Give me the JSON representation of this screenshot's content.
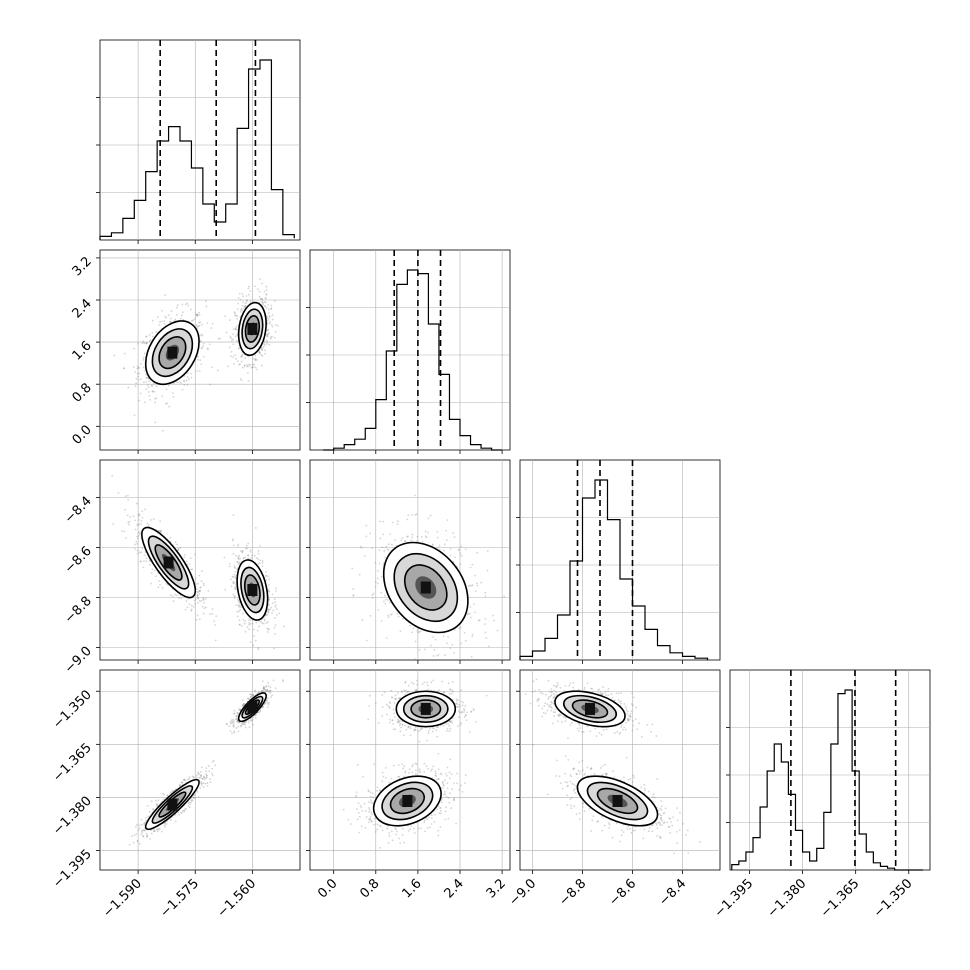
{
  "chart_data": {
    "type": "corner",
    "title": "",
    "parameters": [
      {
        "label": "",
        "range": [
          -1.6,
          -1.5475
        ],
        "ticks": [
          -1.59,
          -1.575,
          -1.56
        ],
        "tick_labels": [
          "−1.590",
          "−1.575",
          "−1.560"
        ]
      },
      {
        "label": "",
        "range": [
          -0.45,
          3.35
        ],
        "ticks": [
          0.0,
          0.8,
          1.6,
          2.4,
          3.2
        ],
        "tick_labels": [
          "0.0",
          "0.8",
          "1.6",
          "2.4",
          "3.2"
        ]
      },
      {
        "label": "",
        "range": [
          -9.05,
          -8.25
        ],
        "ticks": [
          -9.0,
          -8.8,
          -8.6,
          -8.4
        ],
        "tick_labels": [
          "−9.0",
          "−8.8",
          "−8.6",
          "−8.4"
        ]
      },
      {
        "label": "",
        "range": [
          -1.4005,
          -1.344
        ],
        "ticks": [
          -1.395,
          -1.38,
          -1.365,
          -1.35
        ],
        "tick_labels": [
          "−1.395",
          "−1.380",
          "−1.365",
          "−1.350"
        ]
      }
    ],
    "histograms": [
      {
        "parameter": 0,
        "bins": [
          -1.6,
          -1.597,
          -1.594,
          -1.591,
          -1.588,
          -1.585,
          -1.582,
          -1.579,
          -1.576,
          -1.573,
          -1.57,
          -1.567,
          -1.564,
          -1.561,
          -1.558,
          -1.555,
          -1.552,
          -1.549
        ],
        "counts": [
          0.02,
          0.04,
          0.12,
          0.22,
          0.38,
          0.55,
          0.63,
          0.55,
          0.4,
          0.2,
          0.1,
          0.2,
          0.62,
          0.95,
          1.0,
          0.28,
          0.03,
          0.01
        ],
        "quantiles": [
          -1.5842,
          -1.5695,
          -1.5592
        ]
      },
      {
        "parameter": 1,
        "bins": [
          -0.2,
          0.0,
          0.2,
          0.4,
          0.6,
          0.8,
          1.0,
          1.2,
          1.4,
          1.6,
          1.8,
          2.0,
          2.2,
          2.4,
          2.6,
          2.8,
          3.0,
          3.2
        ],
        "counts": [
          0.0,
          0.01,
          0.03,
          0.06,
          0.12,
          0.28,
          0.55,
          0.92,
          1.0,
          0.98,
          0.7,
          0.42,
          0.17,
          0.08,
          0.03,
          0.01,
          0.0
        ],
        "quantiles": [
          1.15,
          1.6,
          2.03
        ]
      },
      {
        "parameter": 2,
        "bins": [
          -9.05,
          -9.0,
          -8.95,
          -8.9,
          -8.85,
          -8.8,
          -8.75,
          -8.7,
          -8.65,
          -8.6,
          -8.55,
          -8.5,
          -8.45,
          -8.4,
          -8.35,
          -8.3
        ],
        "counts": [
          0.02,
          0.05,
          0.12,
          0.25,
          0.55,
          0.9,
          1.0,
          0.78,
          0.45,
          0.3,
          0.17,
          0.08,
          0.04,
          0.02,
          0.01
        ],
        "quantiles": [
          -8.82,
          -8.73,
          -8.6
        ]
      },
      {
        "parameter": 3,
        "bins": [
          -1.4,
          -1.398,
          -1.396,
          -1.394,
          -1.392,
          -1.39,
          -1.388,
          -1.386,
          -1.384,
          -1.382,
          -1.38,
          -1.378,
          -1.376,
          -1.374,
          -1.372,
          -1.37,
          -1.368,
          -1.366,
          -1.364,
          -1.362,
          -1.36,
          -1.358,
          -1.356,
          -1.354,
          -1.352,
          -1.35,
          -1.348,
          -1.346
        ],
        "counts": [
          0.03,
          0.05,
          0.1,
          0.18,
          0.35,
          0.55,
          0.7,
          0.6,
          0.42,
          0.22,
          0.1,
          0.05,
          0.12,
          0.32,
          0.7,
          0.98,
          1.0,
          0.55,
          0.2,
          0.1,
          0.04,
          0.02,
          0.01,
          0.0,
          0.0,
          0.0,
          0.0
        ],
        "quantiles": [
          -1.3833,
          -1.3652,
          -1.3537
        ]
      }
    ],
    "scatter_panels": [
      {
        "x": 0,
        "y": 1,
        "clusters": [
          {
            "center": [
              -1.581,
              1.4
            ],
            "sd": [
              0.0035,
              0.3
            ],
            "rho": 0.35
          },
          {
            "center": [
              -1.56,
              1.85
            ],
            "sd": [
              0.0018,
              0.25
            ],
            "rho": 0.2
          }
        ]
      },
      {
        "x": 0,
        "y": 2,
        "clusters": [
          {
            "center": [
              -1.582,
              -8.66
            ],
            "sd": [
              0.0035,
              0.07
            ],
            "rho": -0.8
          },
          {
            "center": [
              -1.56,
              -8.77
            ],
            "sd": [
              0.002,
              0.06
            ],
            "rho": -0.3
          }
        ]
      },
      {
        "x": 1,
        "y": 2,
        "clusters": [
          {
            "center": [
              1.75,
              -8.76
            ],
            "sd": [
              0.4,
              0.09
            ],
            "rho": -0.3
          }
        ]
      },
      {
        "x": 0,
        "y": 3,
        "clusters": [
          {
            "center": [
              -1.581,
              -1.382
            ],
            "sd": [
              0.0035,
              0.0035
            ],
            "rho": 0.9
          },
          {
            "center": [
              -1.56,
              -1.3545
            ],
            "sd": [
              0.0018,
              0.002
            ],
            "rho": 0.8
          }
        ]
      },
      {
        "x": 1,
        "y": 3,
        "clusters": [
          {
            "center": [
              1.75,
              -1.355
            ],
            "sd": [
              0.28,
              0.0025
            ],
            "rho": 0.0
          },
          {
            "center": [
              1.4,
              -1.381
            ],
            "sd": [
              0.32,
              0.0035
            ],
            "rho": 0.3
          }
        ]
      },
      {
        "x": 2,
        "y": 3,
        "clusters": [
          {
            "center": [
              -8.77,
              -1.355
            ],
            "sd": [
              0.07,
              0.0025
            ],
            "rho": -0.4
          },
          {
            "center": [
              -8.66,
              -1.381
            ],
            "sd": [
              0.08,
              0.0035
            ],
            "rho": -0.55
          }
        ]
      }
    ],
    "contour_levels": [
      0.5,
      1.0,
      1.5,
      2.0
    ],
    "grid": true,
    "legend": "none",
    "colors": {
      "line": "#000000",
      "points": "#888888",
      "grid": "#b0b0b0"
    }
  }
}
